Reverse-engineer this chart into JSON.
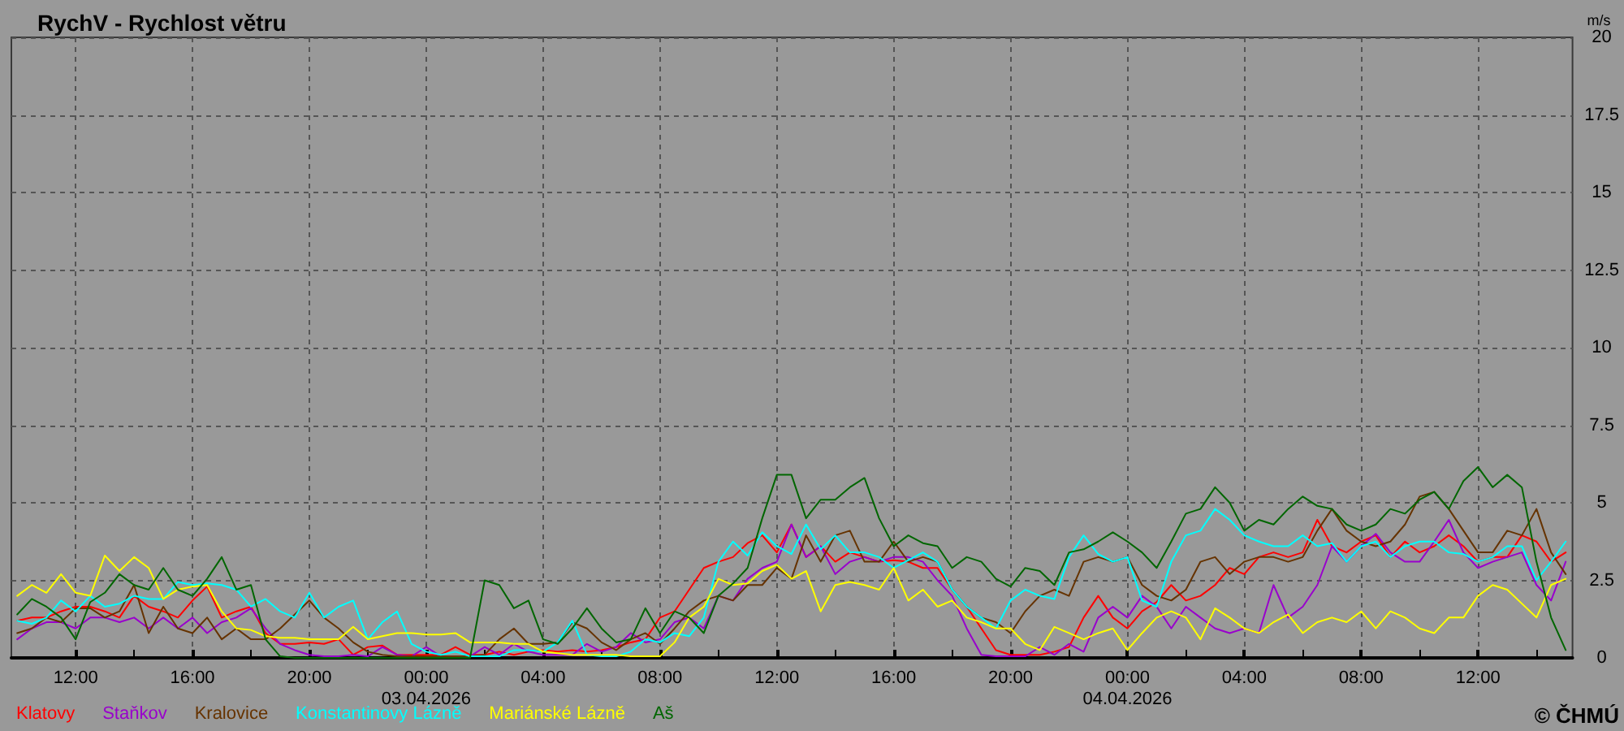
{
  "chart_data": {
    "type": "line",
    "title": "RychV - Rychlost větru",
    "ylabel": "m/s",
    "annotations": [
      "© ČHMÚ"
    ],
    "x": [
      "2026-04-02T10:00",
      "2026-04-02T10:30",
      "2026-04-02T11:00",
      "2026-04-02T11:30",
      "2026-04-02T12:00",
      "2026-04-02T12:30",
      "2026-04-02T13:00",
      "2026-04-02T13:30",
      "2026-04-02T14:00",
      "2026-04-02T14:30",
      "2026-04-02T15:00",
      "2026-04-02T15:30",
      "2026-04-02T16:00",
      "2026-04-02T16:30",
      "2026-04-02T17:00",
      "2026-04-02T17:30",
      "2026-04-02T18:00",
      "2026-04-02T18:30",
      "2026-04-02T19:00",
      "2026-04-02T19:30",
      "2026-04-02T20:00",
      "2026-04-02T20:30",
      "2026-04-02T21:00",
      "2026-04-02T21:30",
      "2026-04-02T22:00",
      "2026-04-02T22:30",
      "2026-04-02T23:00",
      "2026-04-02T23:30",
      "2026-04-03T00:00",
      "2026-04-03T00:30",
      "2026-04-03T01:00",
      "2026-04-03T01:30",
      "2026-04-03T02:00",
      "2026-04-03T02:30",
      "2026-04-03T03:00",
      "2026-04-03T03:30",
      "2026-04-03T04:00",
      "2026-04-03T04:30",
      "2026-04-03T05:00",
      "2026-04-03T05:30",
      "2026-04-03T06:00",
      "2026-04-03T06:30",
      "2026-04-03T07:00",
      "2026-04-03T07:30",
      "2026-04-03T08:00",
      "2026-04-03T08:30",
      "2026-04-03T09:00",
      "2026-04-03T09:30",
      "2026-04-03T10:00",
      "2026-04-03T10:30",
      "2026-04-03T11:00",
      "2026-04-03T11:30",
      "2026-04-03T12:00",
      "2026-04-03T12:30",
      "2026-04-03T13:00",
      "2026-04-03T13:30",
      "2026-04-03T14:00",
      "2026-04-03T14:30",
      "2026-04-03T15:00",
      "2026-04-03T15:30",
      "2026-04-03T16:00",
      "2026-04-03T16:30",
      "2026-04-03T17:00",
      "2026-04-03T17:30",
      "2026-04-03T18:00",
      "2026-04-03T18:30",
      "2026-04-03T19:00",
      "2026-04-03T19:30",
      "2026-04-03T20:00",
      "2026-04-03T20:30",
      "2026-04-03T21:00",
      "2026-04-03T21:30",
      "2026-04-03T22:00",
      "2026-04-03T22:30",
      "2026-04-03T23:00",
      "2026-04-03T23:30",
      "2026-04-04T00:00",
      "2026-04-04T00:30",
      "2026-04-04T01:00",
      "2026-04-04T01:30",
      "2026-04-04T02:00",
      "2026-04-04T02:30",
      "2026-04-04T03:00",
      "2026-04-04T03:30",
      "2026-04-04T04:00",
      "2026-04-04T04:30",
      "2026-04-04T05:00",
      "2026-04-04T05:30",
      "2026-04-04T06:00",
      "2026-04-04T06:30",
      "2026-04-04T07:00",
      "2026-04-04T07:30",
      "2026-04-04T08:00",
      "2026-04-04T08:30",
      "2026-04-04T09:00",
      "2026-04-04T09:30",
      "2026-04-04T10:00",
      "2026-04-04T10:30",
      "2026-04-04T11:00",
      "2026-04-04T11:30",
      "2026-04-04T12:00",
      "2026-04-04T12:30",
      "2026-04-04T13:00",
      "2026-04-04T13:30",
      "2026-04-04T14:00",
      "2026-04-04T14:30",
      "2026-04-04T15:00"
    ],
    "series": [
      {
        "name": "Klatovy",
        "color": "#ff0000",
        "values": [
          1.2,
          1.3,
          1.3,
          1.5,
          1.65,
          1.65,
          1.5,
          1.3,
          2.0,
          1.65,
          1.5,
          1.3,
          1.85,
          2.3,
          1.3,
          1.5,
          1.65,
          0.8,
          0.45,
          0.45,
          0.5,
          0.45,
          0.6,
          0.1,
          0.35,
          0.4,
          0.1,
          0.1,
          0.1,
          0.1,
          0.35,
          0.1,
          0.1,
          0.2,
          0.1,
          0.2,
          0.25,
          0.2,
          0.25,
          0.2,
          0.25,
          0.35,
          0.5,
          0.6,
          1.3,
          1.5,
          2.2,
          2.9,
          3.1,
          3.25,
          3.7,
          3.95,
          3.4,
          4.3,
          3.25,
          3.6,
          3.1,
          3.4,
          3.25,
          3.1,
          3.15,
          3.1,
          2.9,
          2.9,
          2.2,
          1.65,
          0.95,
          0.25,
          0.1,
          0.1,
          0.1,
          0.2,
          0.35,
          1.3,
          2.0,
          1.3,
          0.95,
          1.5,
          1.8,
          2.35,
          1.85,
          2.0,
          2.35,
          2.9,
          2.7,
          3.25,
          3.4,
          3.25,
          3.4,
          4.45,
          3.6,
          3.4,
          3.75,
          3.95,
          3.25,
          3.75,
          3.4,
          3.6,
          3.95,
          3.6,
          3.1,
          3.25,
          3.25,
          3.95,
          3.75,
          3.1,
          3.4
        ]
      },
      {
        "name": "Staňkov",
        "color": "#9900cc",
        "values": [
          0.6,
          0.95,
          1.15,
          1.15,
          0.95,
          1.3,
          1.3,
          1.15,
          1.3,
          0.95,
          1.3,
          0.95,
          1.3,
          0.8,
          1.15,
          1.3,
          1.6,
          0.95,
          0.45,
          0.25,
          0.1,
          0.05,
          0.05,
          0.1,
          0.05,
          0.35,
          0.1,
          0.05,
          0.35,
          0.05,
          0.05,
          0.05,
          0.35,
          0.1,
          0.45,
          0.2,
          0.1,
          0.1,
          0.1,
          0.45,
          0.2,
          0.35,
          0.8,
          0.5,
          0.6,
          1.15,
          1.3,
          0.95,
          2.0,
          1.85,
          2.55,
          2.9,
          3.1,
          4.3,
          3.25,
          3.6,
          2.7,
          3.1,
          3.25,
          3.1,
          3.25,
          3.25,
          3.1,
          2.5,
          2.0,
          0.95,
          0.1,
          0.05,
          0.05,
          0.05,
          0.35,
          0.1,
          0.45,
          0.2,
          1.3,
          1.65,
          1.3,
          2.0,
          1.65,
          0.95,
          1.65,
          1.3,
          0.95,
          0.8,
          0.95,
          0.8,
          2.35,
          1.3,
          1.65,
          2.35,
          3.6,
          3.1,
          3.6,
          4.0,
          3.4,
          3.1,
          3.1,
          3.75,
          4.45,
          3.4,
          2.9,
          3.1,
          3.25,
          3.4,
          2.35,
          1.85,
          3.1
        ]
      },
      {
        "name": "Kralovice",
        "color": "#663300",
        "values": [
          0.8,
          0.95,
          1.3,
          1.15,
          1.6,
          1.6,
          1.3,
          1.5,
          2.35,
          0.8,
          1.65,
          0.95,
          0.8,
          1.3,
          0.6,
          0.95,
          0.6,
          0.6,
          0.95,
          1.4,
          1.85,
          1.3,
          0.95,
          0.5,
          0.2,
          0.1,
          0.05,
          0.05,
          0.05,
          0.05,
          0.05,
          0.05,
          0.1,
          0.6,
          0.95,
          0.45,
          0.45,
          0.5,
          1.15,
          0.95,
          0.5,
          0.25,
          0.6,
          0.8,
          0.45,
          0.95,
          1.5,
          1.85,
          2.0,
          1.85,
          2.35,
          2.35,
          2.9,
          2.55,
          3.95,
          3.1,
          3.95,
          4.1,
          3.1,
          3.1,
          3.75,
          3.1,
          3.25,
          3.1,
          2.2,
          1.65,
          1.3,
          1.15,
          0.8,
          1.5,
          2.0,
          2.2,
          2.0,
          3.1,
          3.25,
          3.1,
          3.25,
          2.35,
          2.0,
          1.85,
          2.2,
          3.1,
          3.25,
          2.7,
          3.1,
          3.25,
          3.25,
          3.1,
          3.25,
          4.1,
          4.8,
          4.1,
          3.75,
          3.6,
          3.75,
          4.3,
          5.2,
          5.35,
          4.8,
          4.1,
          3.4,
          3.4,
          4.1,
          3.95,
          4.8,
          3.4,
          2.7
        ]
      },
      {
        "name": "Konstantinovy Lázně",
        "color": "#00ffff",
        "values": [
          1.2,
          1.1,
          1.3,
          1.85,
          1.5,
          2.0,
          1.65,
          1.75,
          2.0,
          1.9,
          1.9,
          2.45,
          2.35,
          2.4,
          2.35,
          2.2,
          1.65,
          1.9,
          1.5,
          1.3,
          2.1,
          1.3,
          1.65,
          1.85,
          0.6,
          1.15,
          1.5,
          0.45,
          0.2,
          0.1,
          0.2,
          0.05,
          0.05,
          0.05,
          0.25,
          0.25,
          0.2,
          0.5,
          1.2,
          0.1,
          0.05,
          0.05,
          0.2,
          0.6,
          0.5,
          0.8,
          0.7,
          1.3,
          3.1,
          3.75,
          3.3,
          4.05,
          3.6,
          3.35,
          4.3,
          3.5,
          3.95,
          3.4,
          3.4,
          3.25,
          2.9,
          3.15,
          3.4,
          3.1,
          2.2,
          1.65,
          1.3,
          0.95,
          1.85,
          2.2,
          2.0,
          1.9,
          3.25,
          3.95,
          3.35,
          3.1,
          3.25,
          1.85,
          1.65,
          3.1,
          3.95,
          4.1,
          4.8,
          4.45,
          3.95,
          3.75,
          3.6,
          3.6,
          3.95,
          3.6,
          3.7,
          3.1,
          3.6,
          3.75,
          3.25,
          3.6,
          3.75,
          3.75,
          3.4,
          3.35,
          3.1,
          3.25,
          3.6,
          3.6,
          2.5,
          3.1,
          3.75
        ]
      },
      {
        "name": "Mariánské Lázně",
        "color": "#ffff00",
        "values": [
          2.0,
          2.35,
          2.1,
          2.7,
          2.1,
          2.0,
          3.3,
          2.8,
          3.25,
          2.9,
          1.9,
          2.2,
          2.3,
          2.35,
          1.5,
          0.95,
          0.9,
          0.7,
          0.65,
          0.65,
          0.6,
          0.6,
          0.6,
          1.0,
          0.6,
          0.7,
          0.8,
          0.8,
          0.75,
          0.75,
          0.8,
          0.5,
          0.5,
          0.5,
          0.45,
          0.45,
          0.2,
          0.15,
          0.1,
          0.1,
          0.1,
          0.1,
          0.05,
          0.05,
          0.05,
          0.5,
          1.3,
          1.65,
          2.55,
          2.35,
          2.4,
          2.8,
          3.0,
          2.55,
          2.8,
          1.5,
          2.35,
          2.45,
          2.35,
          2.2,
          2.9,
          1.85,
          2.2,
          1.65,
          1.85,
          1.3,
          1.15,
          0.95,
          0.95,
          0.45,
          0.25,
          1.0,
          0.8,
          0.6,
          0.8,
          0.95,
          0.25,
          0.8,
          1.3,
          1.5,
          1.3,
          0.6,
          1.6,
          1.3,
          0.95,
          0.8,
          1.15,
          1.4,
          0.8,
          1.15,
          1.3,
          1.15,
          1.5,
          0.95,
          1.5,
          1.3,
          0.95,
          0.8,
          1.3,
          1.3,
          2.0,
          2.35,
          2.2,
          1.75,
          1.3,
          2.35,
          2.55
        ]
      },
      {
        "name": "Aš",
        "color": "#006600",
        "values": [
          1.4,
          1.9,
          1.65,
          1.3,
          0.6,
          1.8,
          2.1,
          2.7,
          2.35,
          2.2,
          2.9,
          2.2,
          2.0,
          2.55,
          3.25,
          2.2,
          2.35,
          0.6,
          0.05,
          0,
          0,
          0,
          0,
          0,
          0,
          0,
          0,
          0,
          0,
          0,
          0,
          0,
          2.5,
          2.35,
          1.6,
          1.85,
          0.6,
          0.45,
          0.95,
          1.6,
          0.95,
          0.5,
          0.6,
          1.6,
          0.8,
          1.5,
          1.3,
          0.8,
          2.0,
          2.4,
          2.9,
          4.5,
          5.9,
          5.9,
          4.5,
          5.1,
          5.1,
          5.5,
          5.8,
          4.5,
          3.6,
          3.95,
          3.7,
          3.6,
          2.9,
          3.25,
          3.1,
          2.55,
          2.3,
          2.9,
          2.8,
          2.35,
          3.4,
          3.5,
          3.75,
          4.05,
          3.75,
          3.4,
          2.9,
          3.75,
          4.65,
          4.8,
          5.5,
          5.0,
          4.1,
          4.45,
          4.3,
          4.8,
          5.2,
          4.9,
          4.8,
          4.3,
          4.1,
          4.3,
          4.8,
          4.65,
          5.1,
          5.35,
          4.8,
          5.7,
          6.15,
          5.5,
          5.9,
          5.5,
          3.1,
          1.3,
          0.25
        ]
      }
    ],
    "xlim": [
      "2026-04-02T09:48",
      "2026-04-04T15:14"
    ],
    "xticks": [
      {
        "value": "2026-04-02T12:00",
        "label": "12:00"
      },
      {
        "value": "2026-04-02T14:00",
        "label": null
      },
      {
        "value": "2026-04-02T16:00",
        "label": "16:00"
      },
      {
        "value": "2026-04-02T18:00",
        "label": null
      },
      {
        "value": "2026-04-02T20:00",
        "label": "20:00"
      },
      {
        "value": "2026-04-02T22:00",
        "label": null
      },
      {
        "value": "2026-04-03T00:00",
        "label": "00:00\n03.04.2026"
      },
      {
        "value": "2026-04-03T02:00",
        "label": null
      },
      {
        "value": "2026-04-03T04:00",
        "label": "04:00"
      },
      {
        "value": "2026-04-03T06:00",
        "label": null
      },
      {
        "value": "2026-04-03T08:00",
        "label": "08:00"
      },
      {
        "value": "2026-04-03T10:00",
        "label": null
      },
      {
        "value": "2026-04-03T12:00",
        "label": "12:00"
      },
      {
        "value": "2026-04-03T14:00",
        "label": null
      },
      {
        "value": "2026-04-03T16:00",
        "label": "16:00"
      },
      {
        "value": "2026-04-03T18:00",
        "label": null
      },
      {
        "value": "2026-04-03T20:00",
        "label": "20:00"
      },
      {
        "value": "2026-04-03T22:00",
        "label": null
      },
      {
        "value": "2026-04-04T00:00",
        "label": "00:00\n04.04.2026"
      },
      {
        "value": "2026-04-04T02:00",
        "label": null
      },
      {
        "value": "2026-04-04T04:00",
        "label": "04:00"
      },
      {
        "value": "2026-04-04T06:00",
        "label": null
      },
      {
        "value": "2026-04-04T08:00",
        "label": "08:00"
      },
      {
        "value": "2026-04-04T10:00",
        "label": null
      },
      {
        "value": "2026-04-04T12:00",
        "label": "12:00"
      },
      {
        "value": "2026-04-04T14:00",
        "label": null
      }
    ],
    "ylim": [
      0,
      20
    ],
    "yticks": [
      0,
      2.5,
      5,
      7.5,
      10,
      12.5,
      15,
      17.5,
      20
    ],
    "grid": true,
    "legend": "bottom left"
  }
}
